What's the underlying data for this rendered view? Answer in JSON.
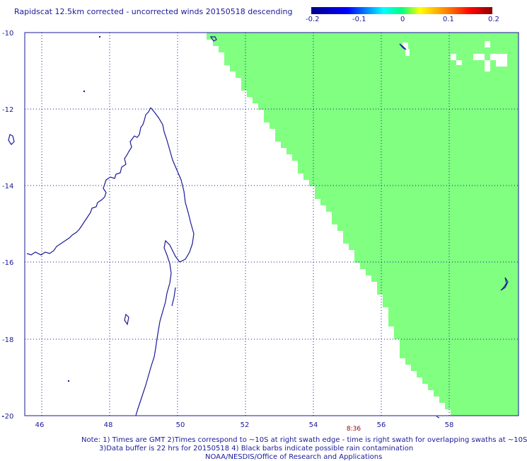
{
  "title": "Rapidscat 12.5km corrected - uncorrected winds 20150518 descending",
  "colorbar": {
    "labels": [
      "-0.2",
      "-0.1",
      "0",
      "0.1",
      "0.2"
    ],
    "range": [
      -0.2,
      0.2
    ]
  },
  "map": {
    "lon_range": [
      45,
      60
    ],
    "lat_range": [
      -20,
      -10
    ],
    "lon_ticks": [
      "46",
      "48",
      "50",
      "52",
      "54",
      "56",
      "58"
    ],
    "lat_ticks": [
      "-10",
      "-12",
      "-14",
      "-16",
      "-18",
      "-20"
    ],
    "swath_color": "#80ff80",
    "coast_color": "#1a1a99",
    "grid": true,
    "time_label": "8:36"
  },
  "notes": {
    "line1": "Note: 1) Times are GMT 2)Times correspond to ~10S at right swath edge - time is right swath for overlapping swaths at ~10S",
    "line2": "3)Data buffer is 22 hrs for 20150518 4) Black barbs indicate possible rain contamination",
    "line3": "NOAA/NESDIS/Office of Research and Applications"
  }
}
